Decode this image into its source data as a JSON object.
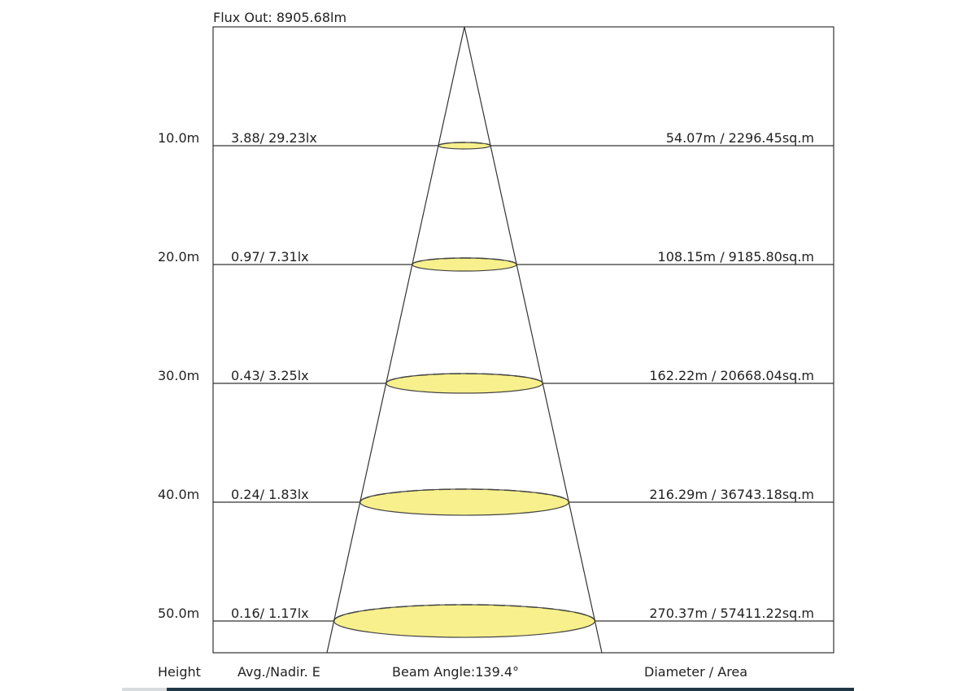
{
  "flux_out": "Flux Out: 8905.68lm",
  "beam_angle": "Beam Angle:139.4°",
  "footer": {
    "height": "Height",
    "avg_nadir": "Avg./Nadir. E",
    "diameter_area": "Diameter / Area"
  },
  "rows": [
    {
      "height": "10.0m",
      "illuminance": "3.88/ 29.23lx",
      "diameter_area": "54.07m / 2296.45sq.m"
    },
    {
      "height": "20.0m",
      "illuminance": "0.97/ 7.31lx",
      "diameter_area": "108.15m / 9185.80sq.m"
    },
    {
      "height": "30.0m",
      "illuminance": "0.43/ 3.25lx",
      "diameter_area": "162.22m / 20668.04sq.m"
    },
    {
      "height": "40.0m",
      "illuminance": "0.24/ 1.83lx",
      "diameter_area": "216.29m / 36743.18sq.m"
    },
    {
      "height": "50.0m",
      "illuminance": "0.16/ 1.17lx",
      "diameter_area": "270.37m / 57411.22sq.m"
    }
  ],
  "colors": {
    "spot_fill": "#f7f08c",
    "line": "#333333"
  }
}
